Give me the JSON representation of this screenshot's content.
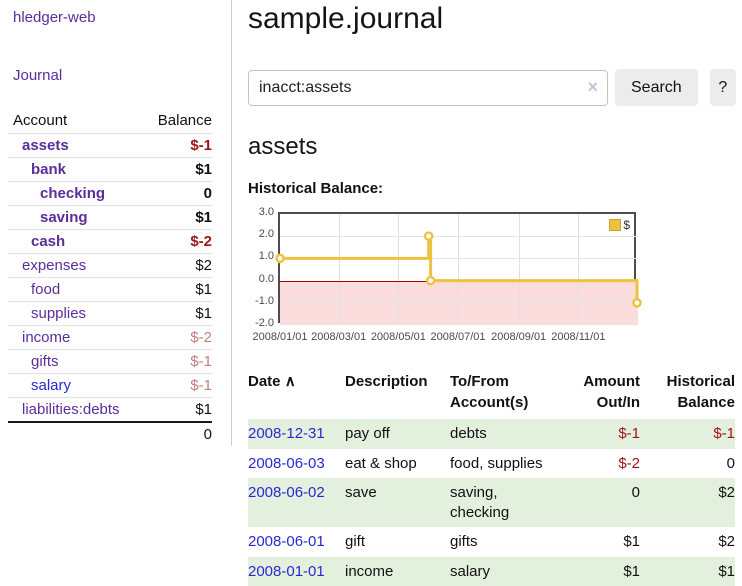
{
  "colors": {
    "accent_purple": "#5b2d9b",
    "link_blue": "#2929d1",
    "neg_strong": "#9d1313",
    "neg_soft": "#c97c7c",
    "row_stripe_green": "#e3f0de",
    "chart_line_yellow": "#edc240",
    "below_zero_pink": "#fbdcdc",
    "zero_line_red": "#a40000"
  },
  "app": {
    "brand": "hledger-web",
    "nav_journal": "Journal"
  },
  "sidebar": {
    "headers": {
      "account": "Account",
      "balance": "Balance"
    },
    "rows": [
      {
        "name": "assets",
        "depth": 1,
        "bold": true,
        "balance": "$-1",
        "bal_class": "neg-strong",
        "link": "purple"
      },
      {
        "name": "bank",
        "depth": 2,
        "bold": true,
        "balance": "$1",
        "bal_class": "",
        "link": "purple"
      },
      {
        "name": "checking",
        "depth": 3,
        "bold": true,
        "balance": "0",
        "bal_class": "",
        "link": "purple"
      },
      {
        "name": "saving",
        "depth": 3,
        "bold": true,
        "balance": "$1",
        "bal_class": "",
        "link": "purple"
      },
      {
        "name": "cash",
        "depth": 2,
        "bold": true,
        "balance": "$-2",
        "bal_class": "neg-strong",
        "link": "purple"
      },
      {
        "name": "expenses",
        "depth": 1,
        "bold": false,
        "balance": "$2",
        "bal_class": "",
        "link": "purple"
      },
      {
        "name": "food",
        "depth": 2,
        "bold": false,
        "balance": "$1",
        "bal_class": "",
        "link": "purple"
      },
      {
        "name": "supplies",
        "depth": 2,
        "bold": false,
        "balance": "$1",
        "bal_class": "",
        "link": "purple"
      },
      {
        "name": "income",
        "depth": 1,
        "bold": false,
        "balance": "$-2",
        "bal_class": "neg-soft",
        "link": "purple"
      },
      {
        "name": "gifts",
        "depth": 2,
        "bold": false,
        "balance": "$-1",
        "bal_class": "neg-soft",
        "link": "purple"
      },
      {
        "name": "salary",
        "depth": 2,
        "bold": false,
        "balance": "$-1",
        "bal_class": "neg-soft",
        "link": "blue"
      },
      {
        "name": "liabilities:debts",
        "depth": 1,
        "bold": false,
        "balance": "$1",
        "bal_class": "",
        "link": "purple"
      }
    ],
    "total": "0"
  },
  "main": {
    "title": "sample.journal",
    "search": {
      "value": "inacct:assets",
      "clear_icon": "×",
      "button_label": "Search",
      "help_label": "?"
    },
    "account_heading": "assets",
    "chart_label": "Historical Balance:"
  },
  "chart_data": {
    "type": "line",
    "step": true,
    "title": "Historical Balance",
    "legend": "$",
    "legend_position": "top-right",
    "grid": true,
    "ylim": [
      -2,
      3
    ],
    "y_ticks": [
      3.0,
      2.0,
      1.0,
      0.0,
      -1.0,
      -2.0
    ],
    "y_tick_labels": [
      "3.0",
      "2.0",
      "1.0",
      "0.0",
      "-1.0",
      "-2.0"
    ],
    "xlim_days": [
      0,
      366
    ],
    "x_ticks": [
      {
        "label": "2008/01/01",
        "day": 0
      },
      {
        "label": "2008/03/01",
        "day": 60
      },
      {
        "label": "2008/05/01",
        "day": 121
      },
      {
        "label": "2008/07/01",
        "day": 182
      },
      {
        "label": "2008/09/01",
        "day": 244
      },
      {
        "label": "2008/11/01",
        "day": 305
      }
    ],
    "series": [
      {
        "name": "$",
        "color": "#edc240",
        "points": [
          {
            "date": "2008/01/01",
            "day": 0,
            "value": 1
          },
          {
            "date": "2008/06/01",
            "day": 152,
            "value": 2
          },
          {
            "date": "2008/06/03",
            "day": 154,
            "value": 0
          },
          {
            "date": "2008/12/31",
            "day": 365,
            "value": -1
          }
        ]
      }
    ]
  },
  "register": {
    "sort_caret": "∧",
    "headers": [
      "Date",
      "Description",
      "To/From Account(s)",
      "Amount Out/In",
      "Historical Balance"
    ],
    "rows": [
      {
        "date": "2008-12-31",
        "description": "pay off",
        "tofrom": "debts",
        "amount": "$-1",
        "amount_neg": true,
        "balance": "$-1",
        "balance_neg": true
      },
      {
        "date": "2008-06-03",
        "description": "eat & shop",
        "tofrom": "food, supplies",
        "amount": "$-2",
        "amount_neg": true,
        "balance": "0",
        "balance_neg": false
      },
      {
        "date": "2008-06-02",
        "description": "save",
        "tofrom": "saving, checking",
        "amount": "0",
        "amount_neg": false,
        "balance": "$2",
        "balance_neg": false
      },
      {
        "date": "2008-06-01",
        "description": "gift",
        "tofrom": "gifts",
        "amount": "$1",
        "amount_neg": false,
        "balance": "$2",
        "balance_neg": false
      },
      {
        "date": "2008-01-01",
        "description": "income",
        "tofrom": "salary",
        "amount": "$1",
        "amount_neg": false,
        "balance": "$1",
        "balance_neg": false
      }
    ]
  }
}
